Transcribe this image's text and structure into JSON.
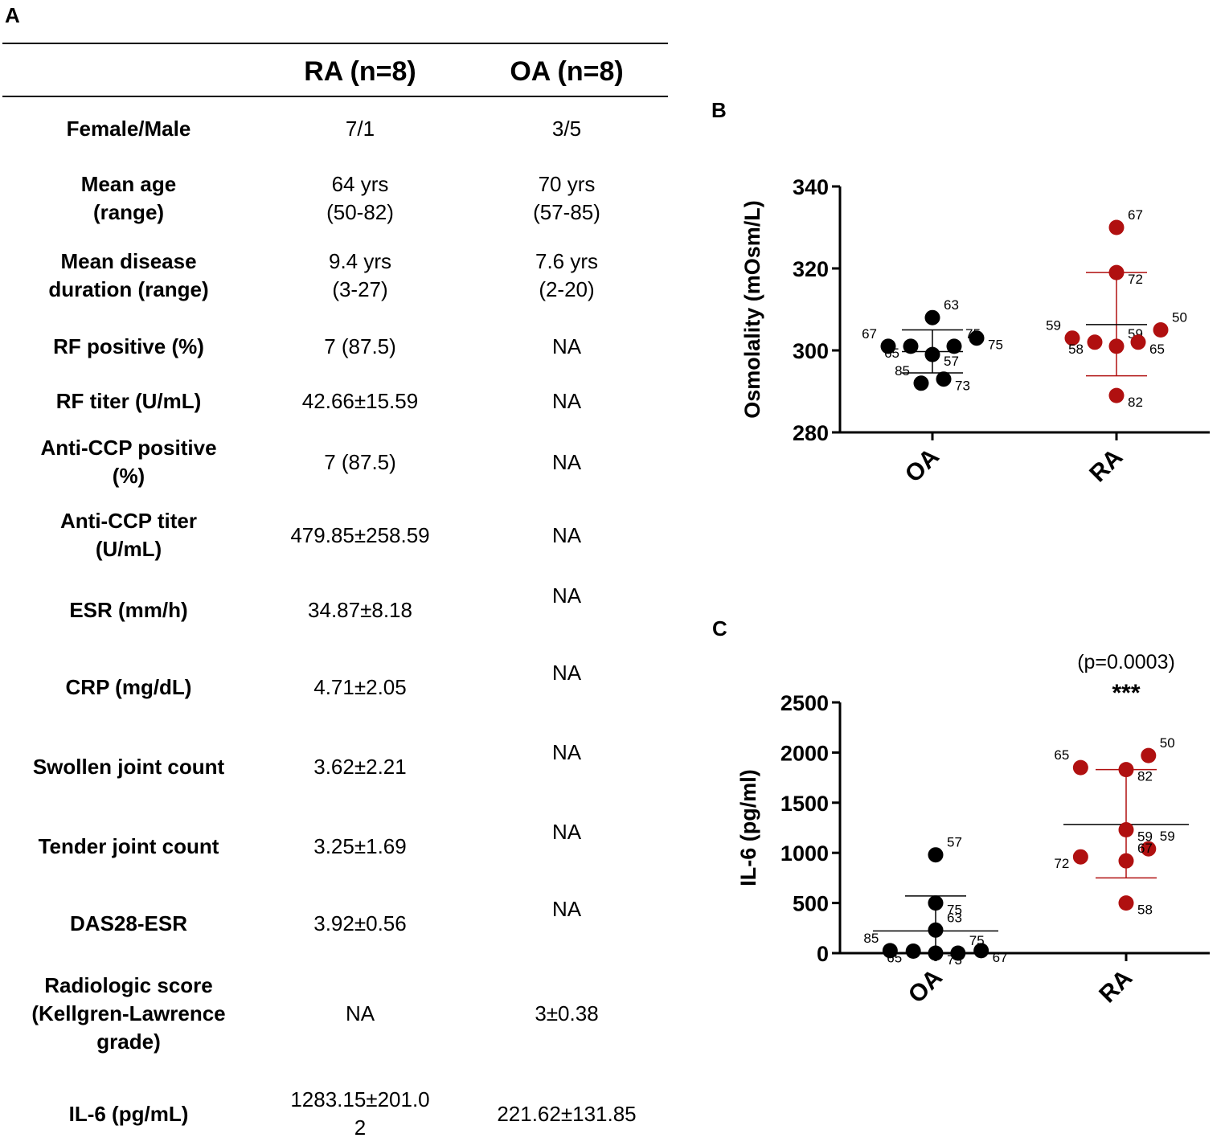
{
  "panels": {
    "a": "A",
    "b": "B",
    "c": "C"
  },
  "table": {
    "headers": [
      "RA (n=8)",
      "OA (n=8)"
    ],
    "rows": [
      {
        "label": "Female/Male",
        "ra": "7/1",
        "oa": "3/5"
      },
      {
        "label": "Mean age\n(range)",
        "ra": "64 yrs\n(50-82)",
        "oa": "70 yrs\n(57-85)"
      },
      {
        "label": "Mean disease\nduration (range)",
        "ra": "9.4 yrs\n(3-27)",
        "oa": "7.6 yrs\n(2-20)"
      },
      {
        "label": "RF positive (%)",
        "ra": "7 (87.5)",
        "oa": "NA"
      },
      {
        "label": "RF titer (U/mL)",
        "ra": "42.66±15.59",
        "oa": "NA"
      },
      {
        "label": "Anti-CCP positive\n(%)",
        "ra": "7 (87.5)",
        "oa": "NA"
      },
      {
        "label": "Anti-CCP titer\n(U/mL)",
        "ra": "479.85±258.59",
        "oa": "NA"
      },
      {
        "label": "ESR (mm/h)",
        "ra": "34.87±8.18",
        "oa": "NA"
      },
      {
        "label": "CRP (mg/dL)",
        "ra": "4.71±2.05",
        "oa": "NA"
      },
      {
        "label": "Swollen joint count",
        "ra": "3.62±2.21",
        "oa": "NA"
      },
      {
        "label": "Tender joint count",
        "ra": "3.25±1.69",
        "oa": "NA"
      },
      {
        "label": "DAS28-ESR",
        "ra": "3.92±0.56",
        "oa": "NA"
      },
      {
        "label": "Radiologic score\n(Kellgren-Lawrence\ngrade)",
        "ra": "NA",
        "oa": "3±0.38"
      },
      {
        "label": "IL-6 (pg/mL)",
        "ra": "1283.15±201.0\n2",
        "oa": "221.62±131.85"
      }
    ]
  },
  "chart_data": [
    {
      "type": "scatter",
      "panel": "B",
      "ylabel": "Osmolality (mOsm/L)",
      "categories": [
        "OA",
        "RA"
      ],
      "ylim": [
        280,
        340
      ],
      "yticks": [
        280,
        300,
        320,
        340
      ],
      "colors": {
        "OA": "#000000",
        "RA": "#b01010"
      },
      "series": [
        {
          "name": "OA",
          "mean": 299.7,
          "sd_low": 294.5,
          "sd_high": 305.0,
          "points": [
            {
              "offset": -0.55,
              "y": 301,
              "label": "67"
            },
            {
              "offset": -0.27,
              "y": 301,
              "label": "65"
            },
            {
              "offset": 0.0,
              "y": 308,
              "label": "63"
            },
            {
              "offset": 0.0,
              "y": 299,
              "label": "57"
            },
            {
              "offset": 0.27,
              "y": 301,
              "label": "75"
            },
            {
              "offset": 0.55,
              "y": 303,
              "label": "75"
            },
            {
              "offset": -0.14,
              "y": 292,
              "label": "85"
            },
            {
              "offset": 0.14,
              "y": 293,
              "label": "73"
            }
          ]
        },
        {
          "name": "RA",
          "mean": 306.3,
          "sd_low": 293.8,
          "sd_high": 319.0,
          "points": [
            {
              "offset": 0.0,
              "y": 330,
              "label": "67"
            },
            {
              "offset": 0.0,
              "y": 319,
              "label": "72"
            },
            {
              "offset": -0.55,
              "y": 303,
              "label": "59"
            },
            {
              "offset": -0.27,
              "y": 302,
              "label": "58"
            },
            {
              "offset": 0.0,
              "y": 301,
              "label": "59"
            },
            {
              "offset": 0.27,
              "y": 302,
              "label": "65"
            },
            {
              "offset": 0.55,
              "y": 305,
              "label": "50"
            },
            {
              "offset": 0.0,
              "y": 289,
              "label": "82"
            }
          ]
        }
      ]
    },
    {
      "type": "scatter",
      "panel": "C",
      "ylabel": "IL-6 (pg/ml)",
      "categories": [
        "OA",
        "RA"
      ],
      "ylim": [
        0,
        2500
      ],
      "yticks": [
        0,
        500,
        1000,
        1500,
        2000,
        2500
      ],
      "colors": {
        "OA": "#000000",
        "RA": "#b01010"
      },
      "annotation": {
        "pvalue": "(p=0.0003)",
        "stars": "***"
      },
      "series": [
        {
          "name": "OA",
          "mean": 221.62,
          "sd_low": 0,
          "sd_high": 570,
          "points": [
            {
              "offset": -0.55,
              "y": 25,
              "label": "85"
            },
            {
              "offset": -0.27,
              "y": 20,
              "label": "65"
            },
            {
              "offset": 0.0,
              "y": 980,
              "label": "57"
            },
            {
              "offset": 0.0,
              "y": 500,
              "label": "75"
            },
            {
              "offset": 0.0,
              "y": 230,
              "label": "63"
            },
            {
              "offset": 0.0,
              "y": 0,
              "label": "73"
            },
            {
              "offset": 0.27,
              "y": 0,
              "label": "75"
            },
            {
              "offset": 0.55,
              "y": 25,
              "label": "67"
            }
          ]
        },
        {
          "name": "RA",
          "mean": 1283.15,
          "sd_low": 750,
          "sd_high": 1830,
          "points": [
            {
              "offset": -0.55,
              "y": 1850,
              "label": "65"
            },
            {
              "offset": 0.0,
              "y": 1830,
              "label": "82"
            },
            {
              "offset": 0.27,
              "y": 1970,
              "label": "50"
            },
            {
              "offset": 0.0,
              "y": 1230,
              "label": "59"
            },
            {
              "offset": 0.27,
              "y": 1040,
              "label": "59"
            },
            {
              "offset": -0.55,
              "y": 960,
              "label": "72"
            },
            {
              "offset": 0.0,
              "y": 920,
              "label": "67"
            },
            {
              "offset": 0.0,
              "y": 500,
              "label": "58"
            }
          ]
        }
      ]
    }
  ]
}
